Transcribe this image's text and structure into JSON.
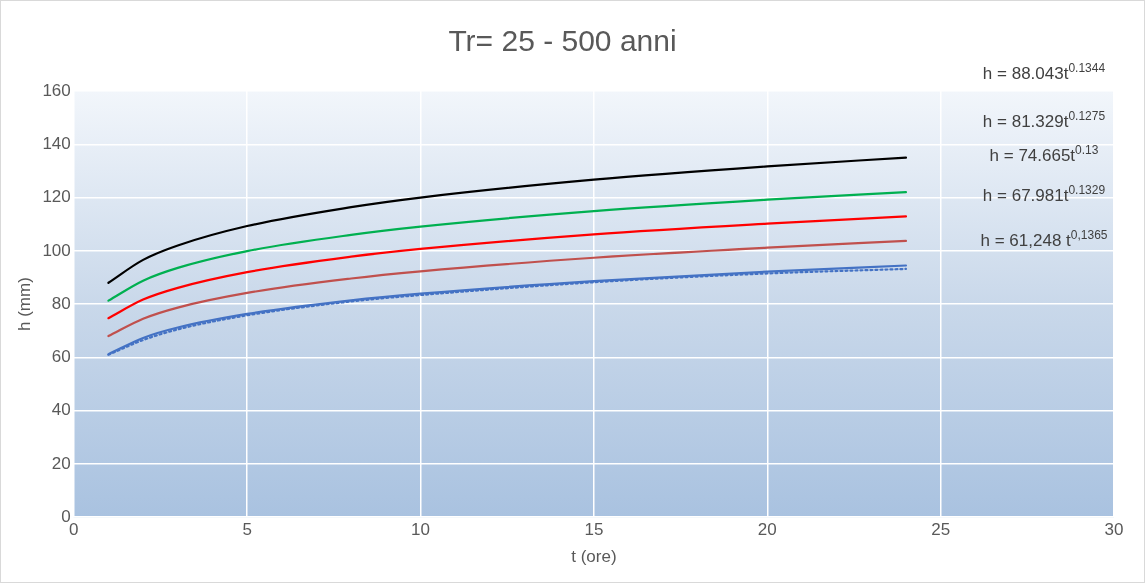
{
  "chart_data": {
    "type": "line",
    "title": "Tr= 25 - 500 anni",
    "xlabel": "t (ore)",
    "ylabel": "h (mm)",
    "xlim": [
      0,
      30
    ],
    "xticks": [
      0,
      5,
      10,
      15,
      20,
      25,
      30
    ],
    "ylim": [
      0,
      160
    ],
    "yticks": [
      0,
      20,
      40,
      60,
      80,
      100,
      120,
      140,
      160
    ],
    "grid": true,
    "legend": false,
    "marker": "none",
    "line_style": "solid",
    "series": [
      {
        "color": "#000000",
        "x": [
          1,
          2,
          3,
          5,
          8,
          10,
          15,
          20,
          24
        ],
        "values": [
          88.0,
          96.6,
          102.0,
          109.3,
          116.4,
          120.0,
          126.7,
          131.7,
          135.0
        ]
      },
      {
        "color": "#00b050",
        "x": [
          1,
          2,
          3,
          5,
          8,
          10,
          15,
          20,
          24
        ],
        "values": [
          81.3,
          88.8,
          93.6,
          99.9,
          106.0,
          109.1,
          114.9,
          119.2,
          122.0
        ]
      },
      {
        "color": "#ff0000",
        "x": [
          1,
          2,
          3,
          5,
          8,
          10,
          15,
          20,
          24
        ],
        "values": [
          74.7,
          81.7,
          86.1,
          92.0,
          97.8,
          100.7,
          106.2,
          110.2,
          112.9
        ]
      },
      {
        "color": "#c0504d",
        "x": [
          1,
          2,
          3,
          5,
          8,
          10,
          15,
          20,
          24
        ],
        "values": [
          68.0,
          74.5,
          78.7,
          84.2,
          89.6,
          92.3,
          97.4,
          101.2,
          103.7
        ]
      },
      {
        "color": "#4472c4",
        "x": [
          1,
          2,
          3,
          5,
          8,
          10,
          15,
          20,
          24
        ],
        "values": [
          61.2,
          67.3,
          71.2,
          76.3,
          81.4,
          83.9,
          88.6,
          92.2,
          94.5
        ]
      },
      {
        "color": "#4472c4",
        "line_style": "dotted",
        "x": [
          1,
          2,
          3,
          5,
          8,
          10,
          15,
          20,
          24
        ],
        "values": [
          61.0,
          66.5,
          70.5,
          75.8,
          81.0,
          83.4,
          88.2,
          91.5,
          93.2
        ]
      }
    ],
    "annotations": [
      "h = 88.043t$^{0.1344}$",
      "h = 81.329t$^{0.1275}$",
      "h = 74.665t$^{0.13}$",
      "h = 67.981t$^{0.1329}$",
      "h = 61,248 t$^{0,1365}$"
    ]
  }
}
